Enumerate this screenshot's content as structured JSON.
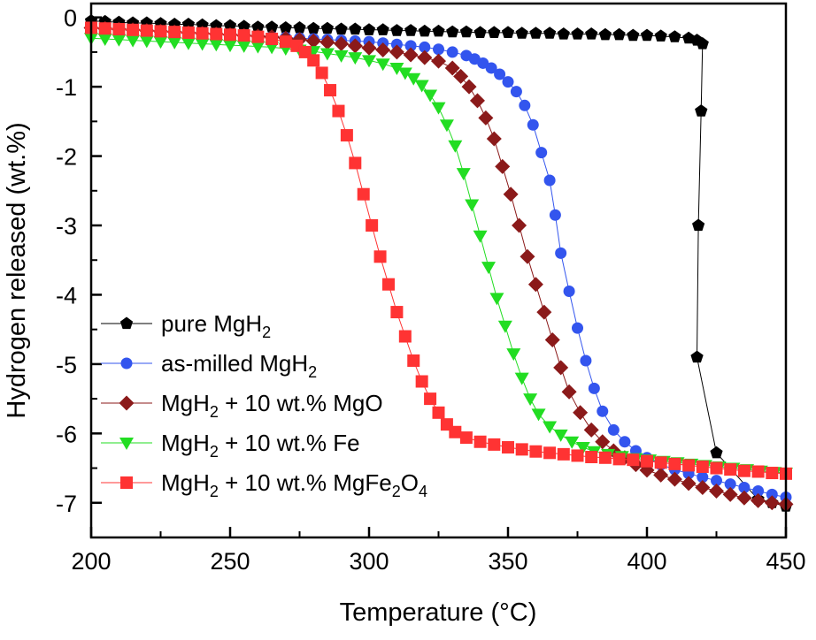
{
  "chart_data": {
    "type": "scatter",
    "title": "",
    "xlabel": "Temperature (°C)",
    "ylabel": "Hydrogen released (wt.%)",
    "xlim": [
      200,
      450
    ],
    "ylim": [
      -7.5,
      0.2
    ],
    "xticks": [
      200,
      250,
      300,
      350,
      400,
      450
    ],
    "yticks": [
      0,
      -1,
      -2,
      -3,
      -4,
      -5,
      -6,
      -7
    ],
    "grid": false,
    "legend": "bottom-left",
    "series": [
      {
        "name": "pure MgH2",
        "legend_parts": [
          {
            "t": "pure MgH"
          },
          {
            "t": "2",
            "sub": true
          }
        ],
        "color": "#000000",
        "marker": "pentagon",
        "points": [
          [
            200,
            -0.05
          ],
          [
            205,
            -0.06
          ],
          [
            210,
            -0.07
          ],
          [
            215,
            -0.08
          ],
          [
            220,
            -0.08
          ],
          [
            225,
            -0.09
          ],
          [
            230,
            -0.1
          ],
          [
            235,
            -0.1
          ],
          [
            240,
            -0.11
          ],
          [
            245,
            -0.12
          ],
          [
            250,
            -0.12
          ],
          [
            255,
            -0.13
          ],
          [
            260,
            -0.14
          ],
          [
            265,
            -0.14
          ],
          [
            270,
            -0.15
          ],
          [
            275,
            -0.15
          ],
          [
            280,
            -0.16
          ],
          [
            285,
            -0.16
          ],
          [
            290,
            -0.17
          ],
          [
            295,
            -0.17
          ],
          [
            300,
            -0.18
          ],
          [
            305,
            -0.18
          ],
          [
            310,
            -0.19
          ],
          [
            315,
            -0.19
          ],
          [
            320,
            -0.2
          ],
          [
            325,
            -0.2
          ],
          [
            330,
            -0.21
          ],
          [
            335,
            -0.21
          ],
          [
            340,
            -0.22
          ],
          [
            345,
            -0.22
          ],
          [
            350,
            -0.22
          ],
          [
            355,
            -0.23
          ],
          [
            360,
            -0.23
          ],
          [
            365,
            -0.23
          ],
          [
            370,
            -0.24
          ],
          [
            375,
            -0.24
          ],
          [
            380,
            -0.24
          ],
          [
            385,
            -0.25
          ],
          [
            390,
            -0.25
          ],
          [
            395,
            -0.26
          ],
          [
            400,
            -0.26
          ],
          [
            405,
            -0.27
          ],
          [
            410,
            -0.28
          ],
          [
            415,
            -0.3
          ],
          [
            418,
            -0.33
          ],
          [
            420,
            -0.38
          ],
          [
            419.5,
            -1.35
          ],
          [
            418.5,
            -3.0
          ],
          [
            418,
            -4.9
          ],
          [
            425,
            -6.28
          ],
          [
            440,
            -6.95
          ],
          [
            445,
            -7.0
          ],
          [
            450,
            -7.05
          ]
        ]
      },
      {
        "name": "as-milled MgH2",
        "legend_parts": [
          {
            "t": "as-milled MgH"
          },
          {
            "t": "2",
            "sub": true
          }
        ],
        "color": "#3355ee",
        "marker": "circle",
        "points": [
          [
            200,
            -0.15
          ],
          [
            205,
            -0.16
          ],
          [
            210,
            -0.17
          ],
          [
            215,
            -0.18
          ],
          [
            220,
            -0.19
          ],
          [
            225,
            -0.2
          ],
          [
            230,
            -0.21
          ],
          [
            235,
            -0.22
          ],
          [
            240,
            -0.23
          ],
          [
            245,
            -0.24
          ],
          [
            250,
            -0.25
          ],
          [
            255,
            -0.26
          ],
          [
            260,
            -0.27
          ],
          [
            265,
            -0.28
          ],
          [
            270,
            -0.29
          ],
          [
            275,
            -0.3
          ],
          [
            280,
            -0.31
          ],
          [
            285,
            -0.32
          ],
          [
            290,
            -0.33
          ],
          [
            295,
            -0.34
          ],
          [
            300,
            -0.35
          ],
          [
            305,
            -0.37
          ],
          [
            310,
            -0.39
          ],
          [
            315,
            -0.41
          ],
          [
            320,
            -0.43
          ],
          [
            325,
            -0.46
          ],
          [
            330,
            -0.5
          ],
          [
            335,
            -0.55
          ],
          [
            338,
            -0.6
          ],
          [
            341,
            -0.66
          ],
          [
            344,
            -0.73
          ],
          [
            347,
            -0.82
          ],
          [
            350,
            -0.93
          ],
          [
            353,
            -1.07
          ],
          [
            356,
            -1.27
          ],
          [
            359,
            -1.55
          ],
          [
            362,
            -1.95
          ],
          [
            365,
            -2.35
          ],
          [
            367,
            -2.85
          ],
          [
            369,
            -3.4
          ],
          [
            372,
            -3.95
          ],
          [
            375,
            -4.48
          ],
          [
            378,
            -4.95
          ],
          [
            381,
            -5.35
          ],
          [
            384,
            -5.68
          ],
          [
            388,
            -5.95
          ],
          [
            392,
            -6.12
          ],
          [
            396,
            -6.25
          ],
          [
            400,
            -6.35
          ],
          [
            405,
            -6.45
          ],
          [
            410,
            -6.52
          ],
          [
            415,
            -6.58
          ],
          [
            420,
            -6.63
          ],
          [
            425,
            -6.68
          ],
          [
            430,
            -6.73
          ],
          [
            435,
            -6.78
          ],
          [
            440,
            -6.83
          ],
          [
            445,
            -6.88
          ],
          [
            450,
            -6.92
          ]
        ]
      },
      {
        "name": "MgH2 + 10 wt.% MgO",
        "legend_parts": [
          {
            "t": "MgH"
          },
          {
            "t": "2",
            "sub": true
          },
          {
            "t": " + 10 wt.% MgO"
          }
        ],
        "color": "#8b1a1a",
        "marker": "diamond",
        "points": [
          [
            200,
            -0.15
          ],
          [
            205,
            -0.16
          ],
          [
            210,
            -0.17
          ],
          [
            215,
            -0.18
          ],
          [
            220,
            -0.19
          ],
          [
            225,
            -0.2
          ],
          [
            230,
            -0.21
          ],
          [
            235,
            -0.22
          ],
          [
            240,
            -0.23
          ],
          [
            245,
            -0.24
          ],
          [
            250,
            -0.25
          ],
          [
            255,
            -0.26
          ],
          [
            260,
            -0.27
          ],
          [
            265,
            -0.28
          ],
          [
            270,
            -0.3
          ],
          [
            275,
            -0.32
          ],
          [
            280,
            -0.34
          ],
          [
            285,
            -0.36
          ],
          [
            290,
            -0.38
          ],
          [
            295,
            -0.41
          ],
          [
            300,
            -0.44
          ],
          [
            305,
            -0.47
          ],
          [
            310,
            -0.5
          ],
          [
            315,
            -0.54
          ],
          [
            320,
            -0.58
          ],
          [
            325,
            -0.63
          ],
          [
            330,
            -0.73
          ],
          [
            333,
            -0.85
          ],
          [
            336,
            -1.0
          ],
          [
            339,
            -1.2
          ],
          [
            342,
            -1.45
          ],
          [
            345,
            -1.75
          ],
          [
            348,
            -2.15
          ],
          [
            351,
            -2.55
          ],
          [
            354,
            -3.0
          ],
          [
            357,
            -3.45
          ],
          [
            360,
            -3.85
          ],
          [
            363,
            -4.25
          ],
          [
            366,
            -4.65
          ],
          [
            369,
            -5.05
          ],
          [
            372,
            -5.4
          ],
          [
            376,
            -5.7
          ],
          [
            380,
            -5.95
          ],
          [
            384,
            -6.12
          ],
          [
            388,
            -6.25
          ],
          [
            392,
            -6.35
          ],
          [
            396,
            -6.45
          ],
          [
            400,
            -6.53
          ],
          [
            405,
            -6.6
          ],
          [
            410,
            -6.66
          ],
          [
            415,
            -6.72
          ],
          [
            420,
            -6.78
          ],
          [
            425,
            -6.83
          ],
          [
            430,
            -6.88
          ],
          [
            435,
            -6.93
          ],
          [
            440,
            -6.97
          ],
          [
            445,
            -7.0
          ],
          [
            450,
            -7.02
          ]
        ]
      },
      {
        "name": "MgH2 + 10 wt.% Fe",
        "legend_parts": [
          {
            "t": "MgH"
          },
          {
            "t": "2",
            "sub": true
          },
          {
            "t": " + 10 wt.% Fe"
          }
        ],
        "color": "#22dd22",
        "marker": "triangle-down",
        "points": [
          [
            200,
            -0.3
          ],
          [
            205,
            -0.31
          ],
          [
            210,
            -0.32
          ],
          [
            215,
            -0.33
          ],
          [
            220,
            -0.34
          ],
          [
            225,
            -0.35
          ],
          [
            230,
            -0.36
          ],
          [
            235,
            -0.37
          ],
          [
            240,
            -0.38
          ],
          [
            245,
            -0.39
          ],
          [
            250,
            -0.4
          ],
          [
            255,
            -0.41
          ],
          [
            260,
            -0.42
          ],
          [
            265,
            -0.43
          ],
          [
            270,
            -0.45
          ],
          [
            275,
            -0.47
          ],
          [
            280,
            -0.49
          ],
          [
            285,
            -0.52
          ],
          [
            290,
            -0.55
          ],
          [
            295,
            -0.58
          ],
          [
            300,
            -0.62
          ],
          [
            305,
            -0.67
          ],
          [
            310,
            -0.73
          ],
          [
            313,
            -0.8
          ],
          [
            316,
            -0.88
          ],
          [
            319,
            -0.98
          ],
          [
            322,
            -1.12
          ],
          [
            325,
            -1.3
          ],
          [
            328,
            -1.55
          ],
          [
            331,
            -1.85
          ],
          [
            334,
            -2.25
          ],
          [
            337,
            -2.7
          ],
          [
            340,
            -3.15
          ],
          [
            343,
            -3.6
          ],
          [
            346,
            -4.05
          ],
          [
            349,
            -4.45
          ],
          [
            352,
            -4.85
          ],
          [
            355,
            -5.2
          ],
          [
            358,
            -5.5
          ],
          [
            361,
            -5.72
          ],
          [
            365,
            -5.9
          ],
          [
            369,
            -6.02
          ],
          [
            373,
            -6.12
          ],
          [
            377,
            -6.2
          ],
          [
            381,
            -6.26
          ],
          [
            386,
            -6.3
          ],
          [
            391,
            -6.33
          ],
          [
            396,
            -6.36
          ],
          [
            401,
            -6.38
          ],
          [
            406,
            -6.4
          ],
          [
            411,
            -6.42
          ],
          [
            416,
            -6.44
          ],
          [
            421,
            -6.46
          ],
          [
            426,
            -6.48
          ],
          [
            431,
            -6.5
          ],
          [
            436,
            -6.52
          ],
          [
            441,
            -6.54
          ],
          [
            446,
            -6.56
          ],
          [
            450,
            -6.57
          ]
        ]
      },
      {
        "name": "MgH2 + 10 wt.% MgFe2O4",
        "legend_parts": [
          {
            "t": "MgH"
          },
          {
            "t": "2",
            "sub": true
          },
          {
            "t": " + 10 wt.% MgFe"
          },
          {
            "t": "2",
            "sub": true
          },
          {
            "t": "O"
          },
          {
            "t": "4",
            "sub": true
          }
        ],
        "color": "#ff3333",
        "marker": "square",
        "points": [
          [
            200,
            -0.15
          ],
          [
            205,
            -0.16
          ],
          [
            210,
            -0.17
          ],
          [
            215,
            -0.18
          ],
          [
            220,
            -0.19
          ],
          [
            225,
            -0.2
          ],
          [
            230,
            -0.21
          ],
          [
            235,
            -0.22
          ],
          [
            240,
            -0.23
          ],
          [
            245,
            -0.24
          ],
          [
            250,
            -0.25
          ],
          [
            255,
            -0.26
          ],
          [
            260,
            -0.28
          ],
          [
            265,
            -0.31
          ],
          [
            270,
            -0.35
          ],
          [
            274,
            -0.41
          ],
          [
            277,
            -0.5
          ],
          [
            280,
            -0.62
          ],
          [
            283,
            -0.8
          ],
          [
            286,
            -1.05
          ],
          [
            289,
            -1.35
          ],
          [
            292,
            -1.7
          ],
          [
            295,
            -2.1
          ],
          [
            298,
            -2.55
          ],
          [
            301,
            -3.0
          ],
          [
            304,
            -3.45
          ],
          [
            307,
            -3.85
          ],
          [
            310,
            -4.25
          ],
          [
            313,
            -4.6
          ],
          [
            316,
            -4.95
          ],
          [
            319,
            -5.25
          ],
          [
            322,
            -5.5
          ],
          [
            325,
            -5.7
          ],
          [
            328,
            -5.87
          ],
          [
            331,
            -5.98
          ],
          [
            335,
            -6.06
          ],
          [
            340,
            -6.12
          ],
          [
            345,
            -6.16
          ],
          [
            350,
            -6.2
          ],
          [
            355,
            -6.23
          ],
          [
            360,
            -6.26
          ],
          [
            365,
            -6.28
          ],
          [
            370,
            -6.3
          ],
          [
            375,
            -6.32
          ],
          [
            380,
            -6.34
          ],
          [
            385,
            -6.35
          ],
          [
            390,
            -6.37
          ],
          [
            395,
            -6.38
          ],
          [
            400,
            -6.4
          ],
          [
            405,
            -6.42
          ],
          [
            410,
            -6.44
          ],
          [
            415,
            -6.46
          ],
          [
            420,
            -6.48
          ],
          [
            425,
            -6.5
          ],
          [
            430,
            -6.52
          ],
          [
            435,
            -6.54
          ],
          [
            440,
            -6.55
          ],
          [
            445,
            -6.57
          ],
          [
            450,
            -6.58
          ]
        ]
      }
    ]
  }
}
